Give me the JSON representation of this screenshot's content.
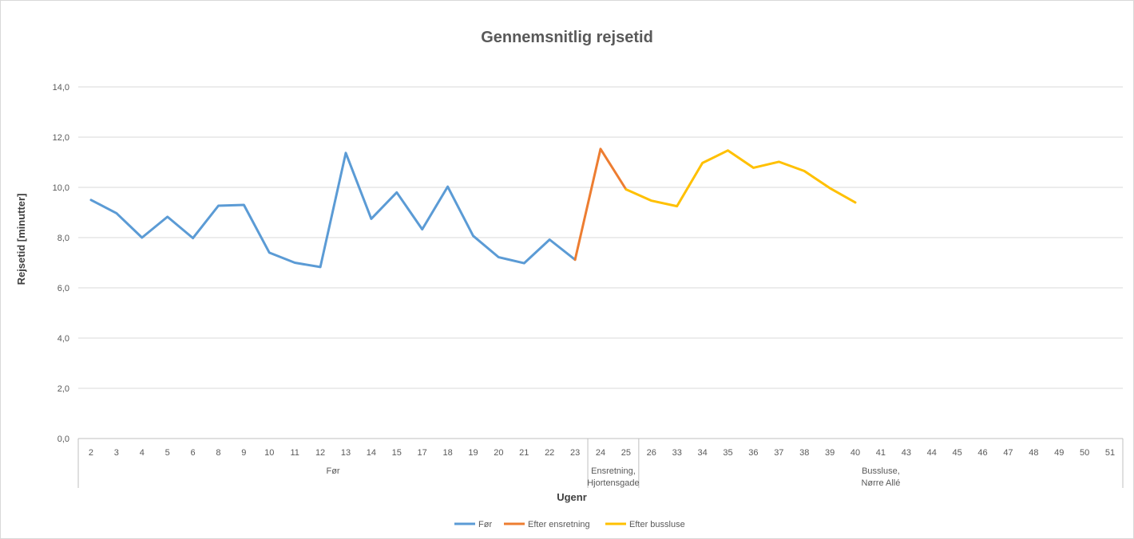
{
  "chart_data": {
    "type": "line",
    "title": "Gennemsnitlig rejsetid",
    "xlabel": "Ugenr",
    "ylabel": "Rejsetid [minutter]",
    "ylim": [
      0,
      14
    ],
    "yticks": [
      "0,0",
      "2,0",
      "4,0",
      "6,0",
      "8,0",
      "10,0",
      "12,0",
      "14,0"
    ],
    "grid": true,
    "legend_position": "bottom",
    "categories": [
      "2",
      "3",
      "4",
      "5",
      "6",
      "8",
      "9",
      "10",
      "11",
      "12",
      "13",
      "14",
      "15",
      "17",
      "18",
      "19",
      "20",
      "21",
      "22",
      "23",
      "24",
      "25",
      "26",
      "33",
      "34",
      "35",
      "36",
      "37",
      "38",
      "39",
      "40",
      "41",
      "43",
      "44",
      "45",
      "46",
      "47",
      "48",
      "49",
      "50",
      "51"
    ],
    "groups": [
      {
        "label_lines": [
          "Før"
        ],
        "start": 0,
        "end": 19
      },
      {
        "label_lines": [
          "Ensretning,",
          "Hjortensgade"
        ],
        "start": 20,
        "end": 21
      },
      {
        "label_lines": [
          "Bussluse,",
          "Nørre Allé"
        ],
        "start": 22,
        "end": 40
      }
    ],
    "series": [
      {
        "name": "Før",
        "color": "#5b9bd5",
        "values": [
          9.5,
          8.97,
          8.0,
          8.83,
          7.98,
          9.27,
          9.3,
          7.4,
          7.0,
          6.83,
          11.37,
          8.75,
          9.8,
          8.33,
          10.03,
          8.07,
          7.22,
          6.98,
          7.92,
          7.12,
          null,
          null,
          null,
          null,
          null,
          null,
          null,
          null,
          null,
          null,
          null,
          null,
          null,
          null,
          null,
          null,
          null,
          null,
          null,
          null,
          null
        ]
      },
      {
        "name": "Efter ensretning",
        "color": "#ed7d31",
        "values": [
          null,
          null,
          null,
          null,
          null,
          null,
          null,
          null,
          null,
          null,
          null,
          null,
          null,
          null,
          null,
          null,
          null,
          null,
          null,
          7.12,
          11.53,
          9.92,
          null,
          null,
          null,
          null,
          null,
          null,
          null,
          null,
          null,
          null,
          null,
          null,
          null,
          null,
          null,
          null,
          null,
          null,
          null
        ]
      },
      {
        "name": "Efter bussluse",
        "color": "#ffc000",
        "values": [
          null,
          null,
          null,
          null,
          null,
          null,
          null,
          null,
          null,
          null,
          null,
          null,
          null,
          null,
          null,
          null,
          null,
          null,
          null,
          null,
          null,
          9.92,
          9.47,
          9.25,
          10.97,
          11.47,
          10.78,
          11.02,
          10.65,
          9.97,
          9.4,
          null,
          null,
          null,
          null,
          null,
          null,
          null,
          null,
          null,
          null
        ]
      }
    ]
  }
}
